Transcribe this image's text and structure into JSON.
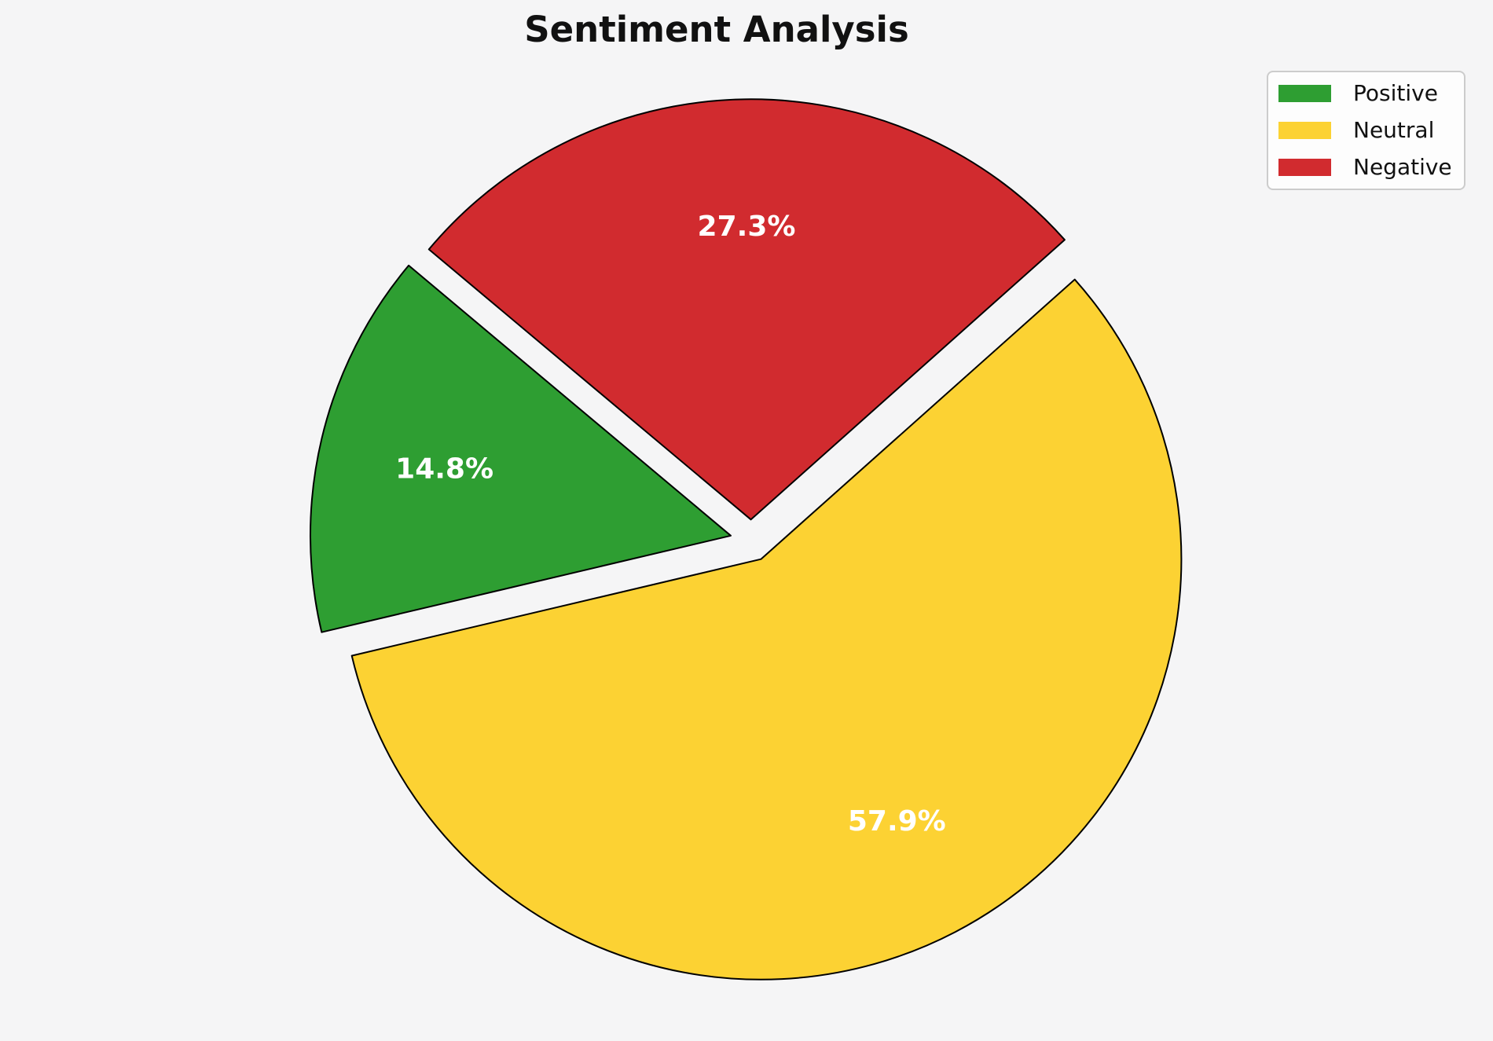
{
  "chart_data": {
    "type": "pie",
    "title": "Sentiment Analysis",
    "series": [
      {
        "label": "Positive",
        "value": 14.8,
        "pct_label": "14.8%",
        "color": "#2E9E32"
      },
      {
        "label": "Neutral",
        "value": 57.9,
        "pct_label": "57.9%",
        "color": "#FCD233"
      },
      {
        "label": "Negative",
        "value": 27.3,
        "pct_label": "27.3%",
        "color": "#D12B2F"
      }
    ],
    "start_angle_deg": 140,
    "counterclockwise": true,
    "explode": 0.05,
    "pct_distance": 0.7,
    "edge_color": "#000000",
    "edge_width": 2,
    "pct_label_color": "#ffffff",
    "background_color": "#f5f5f6",
    "legend": {
      "position": "upper right",
      "entries": [
        "Positive",
        "Neutral",
        "Negative"
      ]
    }
  }
}
